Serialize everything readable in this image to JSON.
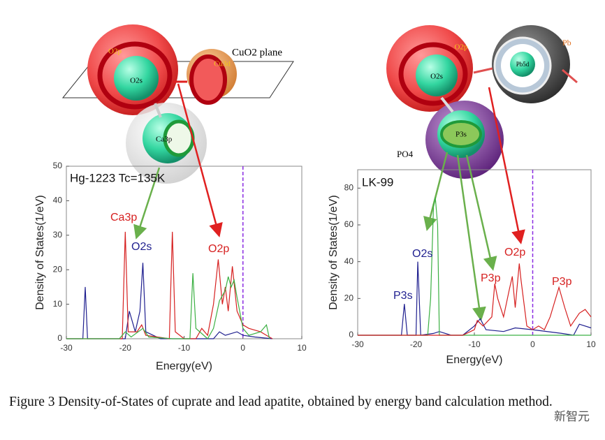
{
  "chart_data": [
    {
      "type": "line",
      "title": "Hg-1223 Tc=135K",
      "xlabel": "Energy(eV)",
      "ylabel": "Density of States(1/eV)",
      "xlim": [
        -30,
        10
      ],
      "xticks": [
        -30,
        -20,
        -10,
        0,
        10
      ],
      "ylim": [
        0,
        50
      ],
      "yticks": [
        0,
        10,
        20,
        30,
        40,
        50
      ],
      "vline": 0,
      "vline_color": "#8a2be2",
      "annotations": [
        {
          "text": "Ca3p",
          "color": "#d62020"
        },
        {
          "text": "O2s",
          "color": "#1f1f8f"
        },
        {
          "text": "O2p",
          "color": "#d62020"
        }
      ],
      "series": [
        {
          "color": "#1f1f8f",
          "x": [
            -30,
            -27.2,
            -26.8,
            -26.4,
            -20,
            -19.3,
            -18.8,
            -18.3,
            -17.5,
            -17,
            -16.5,
            -14,
            -5,
            -4,
            -3,
            -1,
            0,
            2,
            5
          ],
          "values": [
            0,
            0,
            15,
            0,
            0,
            8,
            5,
            2,
            8,
            22,
            2,
            0,
            0,
            2,
            1,
            2,
            1,
            0.5,
            0
          ]
        },
        {
          "color": "#d62020",
          "x": [
            -30,
            -20.5,
            -20,
            -19.5,
            -18,
            -17.2,
            -16.5,
            -12.5,
            -12,
            -11.5,
            -10,
            -8,
            -7,
            -6,
            -5,
            -4.2,
            -3.5,
            -3,
            -2.5,
            -1.8,
            -1,
            0,
            1,
            3,
            4,
            5
          ],
          "values": [
            0,
            0,
            31,
            2,
            2,
            4,
            1,
            0,
            31,
            2,
            0,
            0,
            3,
            1,
            10,
            23,
            10,
            15,
            8,
            21,
            8,
            4,
            3,
            2,
            1,
            0
          ]
        },
        {
          "color": "#3cb043",
          "x": [
            -30,
            -21,
            -20,
            -19,
            -17,
            -16,
            -12,
            -9,
            -8.5,
            -8,
            -6,
            -5,
            -4,
            -3,
            -2.5,
            -2,
            -1.5,
            -1,
            0,
            1,
            3,
            4,
            4.5
          ],
          "values": [
            0,
            0,
            2,
            0.5,
            3,
            0.5,
            0,
            0,
            19,
            3,
            0,
            3,
            11,
            14,
            18,
            15,
            17,
            12,
            3,
            1,
            2,
            4,
            0
          ]
        }
      ]
    },
    {
      "type": "line",
      "title": "LK-99",
      "xlabel": "Energy(eV)",
      "ylabel": "Density of States(1/eV)",
      "xlim": [
        -30,
        10
      ],
      "xticks": [
        -30,
        -20,
        -10,
        0,
        10
      ],
      "ylim": [
        0,
        90
      ],
      "yticks": [
        0,
        20,
        40,
        60,
        80
      ],
      "vline": 0,
      "vline_color": "#8a2be2",
      "annotations": [
        {
          "text": "P3s",
          "color": "#1f1f8f"
        },
        {
          "text": "O2s",
          "color": "#1f1f8f"
        },
        {
          "text": "O2p",
          "color": "#d62020"
        },
        {
          "text": "P3p",
          "color": "#d62020"
        },
        {
          "text": "P3p",
          "color": "#d62020"
        }
      ],
      "series": [
        {
          "color": "#1f1f8f",
          "x": [
            -30,
            -22.5,
            -22,
            -21.5,
            -20,
            -19.7,
            -19.2,
            -17,
            -16,
            -14,
            -12,
            -10,
            -9,
            -8,
            -5,
            -3,
            0,
            5,
            7,
            8,
            10
          ],
          "values": [
            0,
            0,
            17,
            0,
            0,
            40,
            0,
            1,
            2,
            0,
            0,
            5,
            9,
            3,
            2,
            4,
            3,
            1,
            0,
            6,
            4
          ]
        },
        {
          "color": "#3cb043",
          "x": [
            -30,
            -18,
            -17.5,
            -17,
            -16.7,
            -16.3,
            -16,
            -14,
            10
          ],
          "values": [
            0,
            0,
            20,
            70,
            75,
            60,
            0,
            0,
            0
          ]
        },
        {
          "color": "#d62020",
          "x": [
            -30,
            -12,
            -10,
            -9.5,
            -8.5,
            -7,
            -6.5,
            -6,
            -5,
            -4,
            -3.5,
            -3,
            -2.3,
            -2,
            -1,
            0,
            1,
            2,
            3,
            4.5,
            5.5,
            6.5,
            8,
            9,
            10
          ],
          "values": [
            0,
            0,
            3,
            8,
            5,
            10,
            28,
            20,
            10,
            25,
            32,
            15,
            39,
            30,
            5,
            3,
            5,
            3,
            10,
            26,
            15,
            5,
            12,
            14,
            10
          ]
        }
      ]
    }
  ],
  "diagrams": {
    "left": {
      "o2p": "O2p",
      "o2s": "O2s",
      "cu3d": "Cu3d",
      "plane": "CuO2 plane",
      "ca3p": "Ca3p"
    },
    "right": {
      "o2p": "O2p",
      "o2s": "O2s",
      "pb5d": "Pb5d",
      "pb": "Pb",
      "p3s": "P3s",
      "po4": "PO4"
    }
  },
  "caption": "Figure 3 Density-of-States of cuprate and lead apatite, obtained by energy band calculation method.",
  "watermark": "新智元"
}
